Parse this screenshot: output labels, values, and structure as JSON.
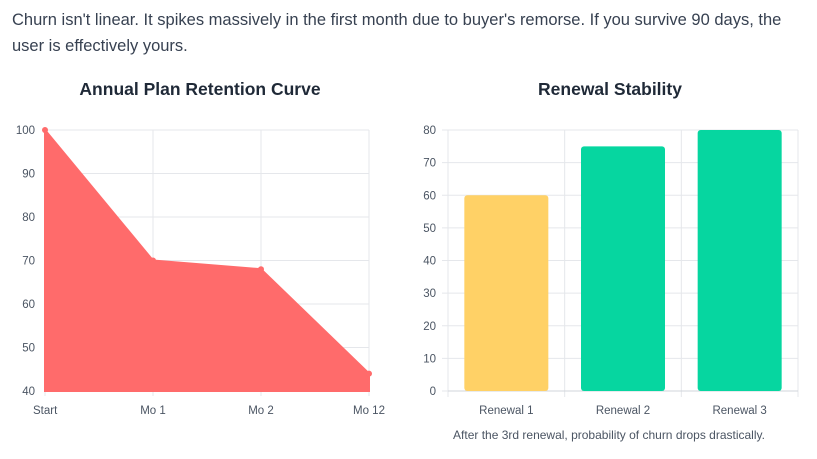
{
  "intro_text": "Churn isn't linear. It spikes massively in the first month due to buyer's remorse. If you survive 90 days, the user is effectively yours.",
  "chart_data": [
    {
      "type": "area",
      "title": "Annual Plan Retention Curve",
      "categories": [
        "Start",
        "Mo 1",
        "Mo 2",
        "Mo 12"
      ],
      "series": [
        {
          "values": [
            100,
            70,
            68,
            44
          ]
        }
      ],
      "ylim": [
        40,
        100
      ],
      "yticks": [
        40,
        50,
        60,
        70,
        80,
        90,
        100
      ],
      "color": "#ff6b6b",
      "grid": true
    },
    {
      "type": "bar",
      "title": "Renewal Stability",
      "categories": [
        "Renewal 1",
        "Renewal 2",
        "Renewal 3"
      ],
      "values": [
        60,
        75,
        80
      ],
      "colors": [
        "#ffd166",
        "#06d6a0",
        "#06d6a0"
      ],
      "ylim": [
        0,
        80
      ],
      "yticks": [
        0,
        10,
        20,
        30,
        40,
        50,
        60,
        70,
        80
      ],
      "grid": true,
      "caption": "After the 3rd renewal, probability of churn drops drastically."
    }
  ]
}
